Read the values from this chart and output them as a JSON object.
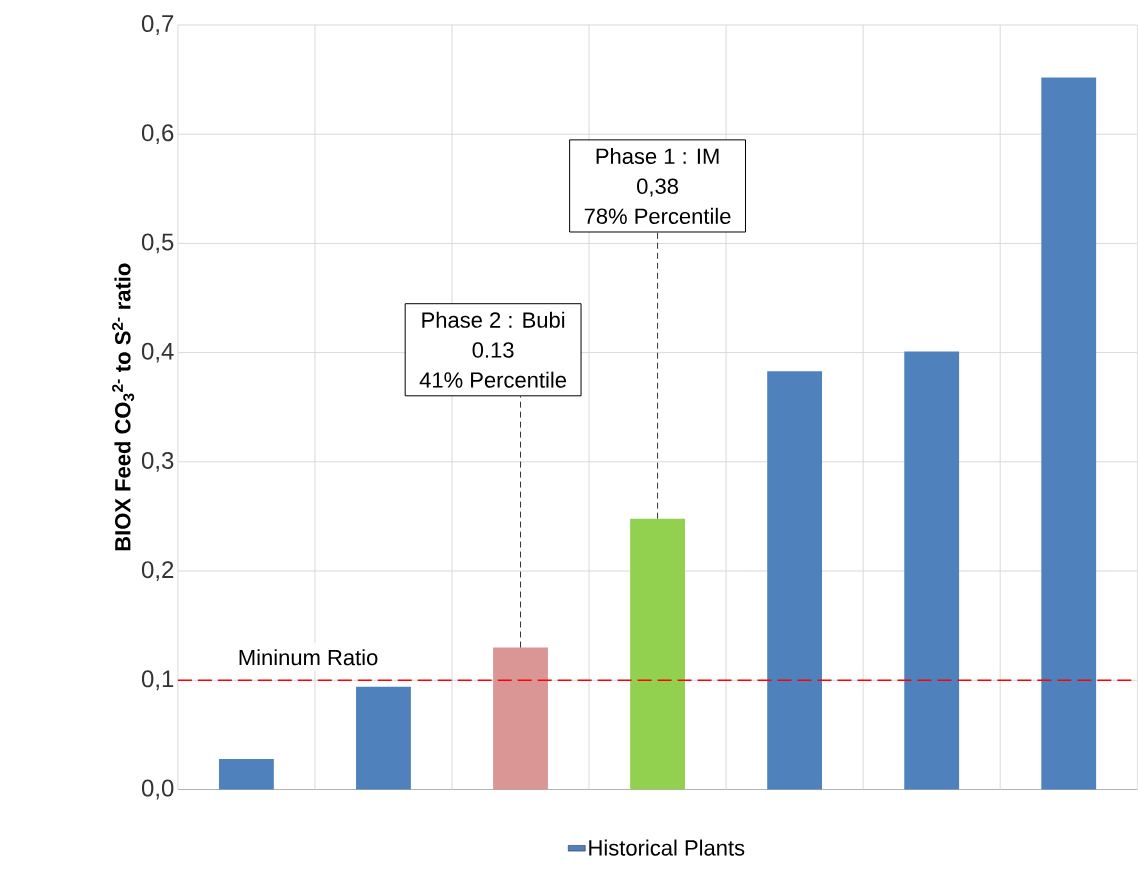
{
  "chart_data": {
    "type": "bar",
    "ylabel": "**BIOX Feed CO$_{3}$$^{2-}$ to S$^{2-}$ ratio**",
    "categories": [
      null,
      null,
      null,
      null,
      null,
      null,
      null
    ],
    "series": [
      {
        "name": "Historical Plants",
        "color": "#4f81bd",
        "colors": [
          "#4f81bd",
          "#4f81bd",
          "#d99694",
          "#92d050",
          "#4f81bd",
          "#4f81bd",
          "#4f81bd"
        ],
        "values": [
          0.028,
          0.094,
          0.13,
          0.248,
          0.383,
          0.401,
          0.652
        ]
      }
    ],
    "ylim": [
      0,
      0.7
    ],
    "yticks": [
      {
        "value": 0,
        "label": "0,0"
      },
      {
        "value": 0.1,
        "label": "0,1"
      },
      {
        "value": 0.2,
        "label": "0,2"
      },
      {
        "value": 0.3,
        "label": "0,3"
      },
      {
        "value": 0.4,
        "label": "0,4"
      },
      {
        "value": 0.5,
        "label": "0,5"
      },
      {
        "value": 0.6,
        "label": "0,6"
      },
      {
        "value": 0.7,
        "label": "0,7"
      }
    ],
    "grid": true,
    "legend": "bottom",
    "ref_lines": [
      {
        "axis": "y",
        "value": 0.1,
        "label": "Mininum Ratio",
        "color": "#ff0000",
        "line_style": "dashed"
      }
    ],
    "annotations": [
      "Phase 2 : Bubi",
      "0.13",
      "41% Percentile",
      "Phase 1 : IM",
      "0,38",
      "78% Percentile"
    ]
  }
}
